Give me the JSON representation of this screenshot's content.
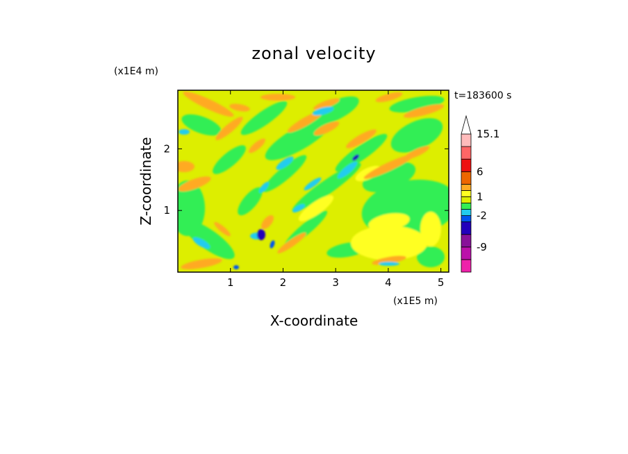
{
  "chart_data": {
    "type": "heatmap",
    "title": "zonal velocity",
    "xlabel": "X-coordinate",
    "ylabel": "Z-coordinate",
    "x_unit": "(x1E5 m)",
    "y_unit": "(x1E4 m)",
    "time_label": "t=183600 s",
    "xlim": [
      0,
      5.15
    ],
    "ylim": [
      0,
      2.95
    ],
    "x_ticks": [
      1,
      2,
      3,
      4,
      5
    ],
    "y_ticks": [
      1,
      2
    ],
    "colorbar": {
      "levels": [
        -15,
        -12,
        -9,
        -6,
        -3,
        -2,
        -1,
        0,
        1,
        2,
        3,
        6,
        9,
        12,
        15.1
      ],
      "colors": [
        "#ee22aa",
        "#bb11aa",
        "#881199",
        "#2200bb",
        "#0055ee",
        "#22ccee",
        "#33ee55",
        "#ddee00",
        "#ffff22",
        "#ffaa22",
        "#ee6600",
        "#ee1111",
        "#ff6666",
        "#ffbbbb"
      ],
      "labels": [
        {
          "value": 15.1,
          "text": "15.1"
        },
        {
          "value": 6,
          "text": "6"
        },
        {
          "value": 1,
          "text": "1"
        },
        {
          "value": -2,
          "text": "-2"
        },
        {
          "value": -9,
          "text": "-9"
        }
      ],
      "extend": "max"
    }
  }
}
